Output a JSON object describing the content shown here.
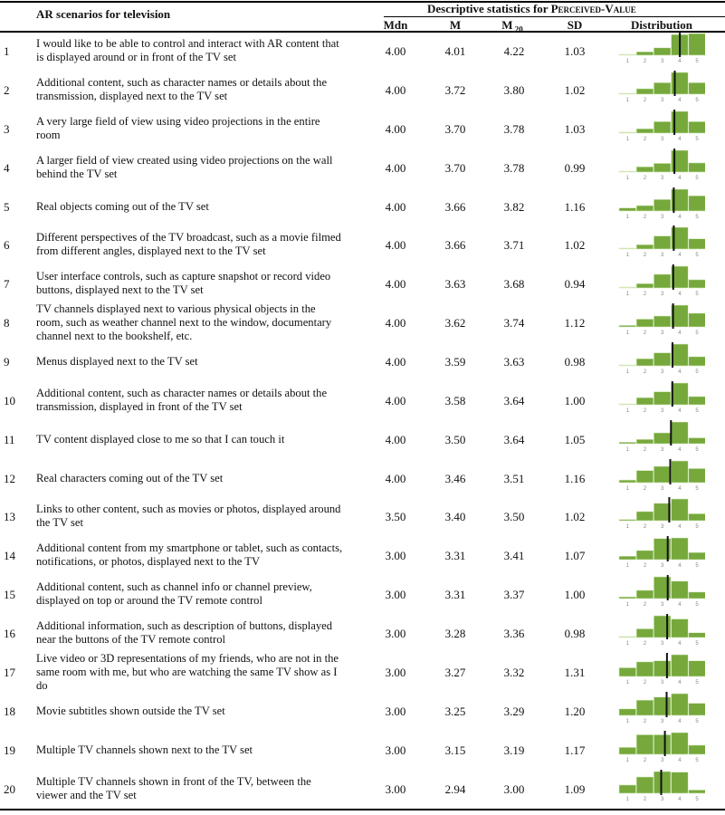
{
  "header": {
    "scenarios_title": "AR scenarios for television",
    "stats_title_prefix": "Descriptive statistics for ",
    "stats_title_construct": "Perceived-Value",
    "col_mdn": "Mdn",
    "col_m": "M",
    "col_m20": "M",
    "col_m20_sub": ".20",
    "col_sd": "SD",
    "col_dist": "Distribution"
  },
  "axis_ticks": [
    "1",
    "2",
    "3",
    "4",
    "5"
  ],
  "colors": {
    "bar": "#76a83c",
    "bar_light": "#c8dfa8",
    "mean_line": "#111111",
    "tick": "#888888"
  },
  "rows": [
    {
      "n": "1",
      "text": "I would like to be able to control and interact with AR content that is displayed around or in front of the TV set",
      "mdn": "4.00",
      "m": "4.01",
      "m20": "4.22",
      "sd": "1.03",
      "mean": 4.01,
      "dist": [
        0.04,
        0.16,
        0.34,
        0.95,
        1.0
      ]
    },
    {
      "n": "2",
      "text": "Additional content, such as character names or details about the transmission, displayed next to the TV set",
      "mdn": "4.00",
      "m": "3.72",
      "m20": "3.80",
      "sd": "1.02",
      "mean": 3.72,
      "dist": [
        0.03,
        0.25,
        0.53,
        1.0,
        0.53
      ]
    },
    {
      "n": "3",
      "text": "A very large field of view using video projections in the entire room",
      "mdn": "4.00",
      "m": "3.70",
      "m20": "3.78",
      "sd": "1.03",
      "mean": 3.7,
      "dist": [
        0.05,
        0.2,
        0.53,
        1.0,
        0.53
      ]
    },
    {
      "n": "4",
      "text": "A larger field of view created using video projections on the wall behind the TV set",
      "mdn": "4.00",
      "m": "3.70",
      "m20": "3.78",
      "sd": "0.99",
      "mean": 3.7,
      "dist": [
        0.04,
        0.24,
        0.4,
        1.0,
        0.42
      ]
    },
    {
      "n": "5",
      "text": "Real objects coming out of the TV set",
      "mdn": "4.00",
      "m": "3.66",
      "m20": "3.82",
      "sd": "1.16",
      "mean": 3.66,
      "dist": [
        0.14,
        0.25,
        0.53,
        1.0,
        0.7
      ]
    },
    {
      "n": "6",
      "text": "Different perspectives of the TV broadcast, such as a movie filmed from different angles, displayed next to the TV set",
      "mdn": "4.00",
      "m": "3.66",
      "m20": "3.71",
      "sd": "1.02",
      "mean": 3.66,
      "dist": [
        0.04,
        0.2,
        0.6,
        1.0,
        0.47
      ]
    },
    {
      "n": "7",
      "text": "User interface controls, such as capture snapshot or record video buttons, displayed next to the TV set",
      "mdn": "4.00",
      "m": "3.63",
      "m20": "3.68",
      "sd": "0.94",
      "mean": 3.63,
      "dist": [
        0.04,
        0.2,
        0.63,
        1.0,
        0.38
      ]
    },
    {
      "n": "8",
      "text": "TV channels displayed next to various physical objects in the room, such as weather channel next to the window, documentary channel next to the bookshelf, etc.",
      "mdn": "4.00",
      "m": "3.62",
      "m20": "3.74",
      "sd": "1.12",
      "mean": 3.62,
      "dist": [
        0.07,
        0.36,
        0.5,
        1.0,
        0.63
      ]
    },
    {
      "n": "9",
      "text": "Menus displayed next to the TV set",
      "mdn": "4.00",
      "m": "3.59",
      "m20": "3.63",
      "sd": "0.98",
      "mean": 3.59,
      "dist": [
        0.0,
        0.33,
        0.6,
        1.0,
        0.42
      ]
    },
    {
      "n": "10",
      "text": "Additional content, such as character names or details about the transmission, displayed in front of the TV set",
      "mdn": "4.00",
      "m": "3.58",
      "m20": "3.64",
      "sd": "1.00",
      "mean": 3.58,
      "dist": [
        0.0,
        0.33,
        0.6,
        1.0,
        0.38
      ]
    },
    {
      "n": "11",
      "text": "TV content displayed close to me so that I can touch it",
      "mdn": "4.00",
      "m": "3.50",
      "m20": "3.64",
      "sd": "1.05",
      "mean": 3.5,
      "dist": [
        0.07,
        0.2,
        0.5,
        1.0,
        0.27
      ]
    },
    {
      "n": "12",
      "text": "Real characters coming out of the TV set",
      "mdn": "4.00",
      "m": "3.46",
      "m20": "3.51",
      "sd": "1.16",
      "mean": 3.46,
      "dist": [
        0.12,
        0.56,
        0.75,
        1.0,
        0.65
      ]
    },
    {
      "n": "13",
      "text": "Links to other content, such as movies or photos, displayed around the TV set",
      "mdn": "3.50",
      "m": "3.40",
      "m20": "3.50",
      "sd": "1.02",
      "mean": 3.4,
      "dist": [
        0.06,
        0.42,
        0.8,
        1.0,
        0.32
      ]
    },
    {
      "n": "14",
      "text": "Additional content from my smartphone or tablet, such as contacts, notifications, or photos, displayed next to the TV",
      "mdn": "3.00",
      "m": "3.31",
      "m20": "3.41",
      "sd": "1.07",
      "mean": 3.31,
      "dist": [
        0.16,
        0.42,
        0.97,
        1.0,
        0.33
      ]
    },
    {
      "n": "15",
      "text": "Additional content, such as channel info or channel preview, displayed on top or around the TV remote control",
      "mdn": "3.00",
      "m": "3.31",
      "m20": "3.37",
      "sd": "1.00",
      "mean": 3.31,
      "dist": [
        0.08,
        0.38,
        1.0,
        0.8,
        0.3
      ]
    },
    {
      "n": "16",
      "text": "Additional information, such as description of buttons, displayed near the buttons of the TV remote control",
      "mdn": "3.00",
      "m": "3.28",
      "m20": "3.36",
      "sd": "0.98",
      "mean": 3.28,
      "dist": [
        0.05,
        0.4,
        1.0,
        0.85,
        0.22
      ]
    },
    {
      "n": "17",
      "text": "Live video or 3D representations of my friends, who are not in the same room with me, but who are watching the same TV show as I do",
      "mdn": "3.00",
      "m": "3.27",
      "m20": "3.32",
      "sd": "1.31",
      "mean": 3.27,
      "dist": [
        0.4,
        0.67,
        0.72,
        1.0,
        0.72
      ]
    },
    {
      "n": "18",
      "text": "Movie subtitles shown outside the TV set",
      "mdn": "3.00",
      "m": "3.25",
      "m20": "3.29",
      "sd": "1.20",
      "mean": 3.25,
      "dist": [
        0.3,
        0.7,
        0.84,
        1.0,
        0.56
      ]
    },
    {
      "n": "19",
      "text": "Multiple TV channels shown next to the TV set",
      "mdn": "3.00",
      "m": "3.15",
      "m20": "3.19",
      "sd": "1.17",
      "mean": 3.15,
      "dist": [
        0.32,
        0.9,
        0.9,
        1.0,
        0.42
      ]
    },
    {
      "n": "20",
      "text": "Multiple TV channels shown in front of the TV, between the viewer and the TV set",
      "mdn": "3.00",
      "m": "2.94",
      "m20": "3.00",
      "sd": "1.09",
      "mean": 2.94,
      "dist": [
        0.38,
        0.75,
        1.0,
        0.97,
        0.15
      ]
    }
  ]
}
